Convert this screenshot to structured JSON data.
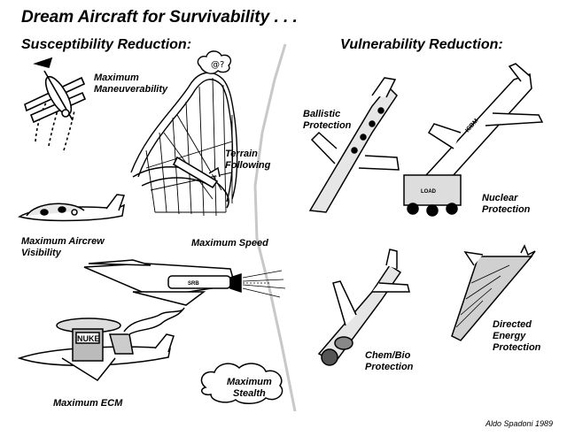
{
  "title": "Dream Aircraft for Survivability . . .",
  "sections": {
    "left": "Susceptibility Reduction:",
    "right": "Vulnerability Reduction:"
  },
  "labels": {
    "maneuverability_1": "Maximum",
    "maneuverability_2": "Maneuverability",
    "terrain_1": "Terrain",
    "terrain_2": "Following",
    "aircrew_1": "Maximum Aircrew",
    "aircrew_2": "Visibility",
    "speed": "Maximum Speed",
    "ecm": "Maximum ECM",
    "stealth_1": "Maximum",
    "stealth_2": "Stealth",
    "ballistic_1": "Ballistic",
    "ballistic_2": "Protection",
    "nuclear_1": "Nuclear",
    "nuclear_2": "Protection",
    "chembio_1": "Chem/Bio",
    "chembio_2": "Protection",
    "directed_1": "Directed",
    "directed_2": "Energy",
    "directed_3": "Protection"
  },
  "markings": {
    "rocket": "SRB",
    "tower": "NUKE",
    "icbm": "ICBM",
    "truck": "LOAD"
  },
  "signature": "Aldo Spadoni 1989"
}
